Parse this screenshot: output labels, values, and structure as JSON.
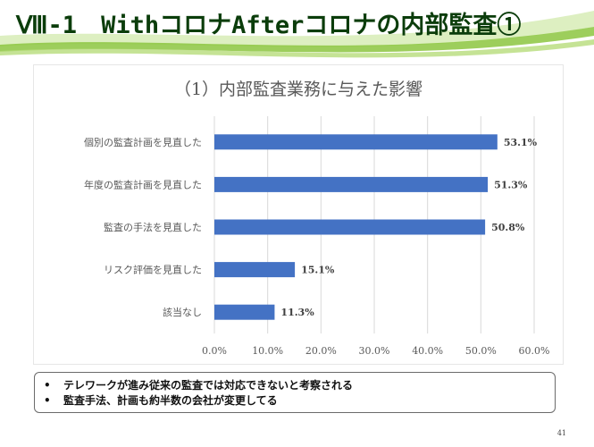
{
  "slide": {
    "title": "Ⅷ-1　WithコロナAfterコロナの内部監査①",
    "page_number": "41"
  },
  "chart_data": {
    "type": "bar",
    "orientation": "horizontal",
    "title": "（1）内部監査業務に与えた影響",
    "categories": [
      "個別の監査計画を見直した",
      "年度の監査計画を見直した",
      "監査の手法を見直した",
      "リスク評価を見直した",
      "該当なし"
    ],
    "values": [
      53.1,
      51.3,
      50.8,
      15.1,
      11.3
    ],
    "value_labels": [
      "53.1%",
      "51.3%",
      "50.8%",
      "15.1%",
      "11.3%"
    ],
    "xlim": [
      0,
      60
    ],
    "xticks": [
      "0.0%",
      "10.0%",
      "20.0%",
      "30.0%",
      "40.0%",
      "50.0%",
      "60.0%"
    ],
    "bar_color": "#4472c4",
    "grid": true,
    "legend": "none"
  },
  "notes": {
    "bullet": "•",
    "lines": [
      "テレワークが進み従来の監査では対応できないと考察される",
      "監査手法、計画も約半数の会社が変更してる"
    ]
  }
}
